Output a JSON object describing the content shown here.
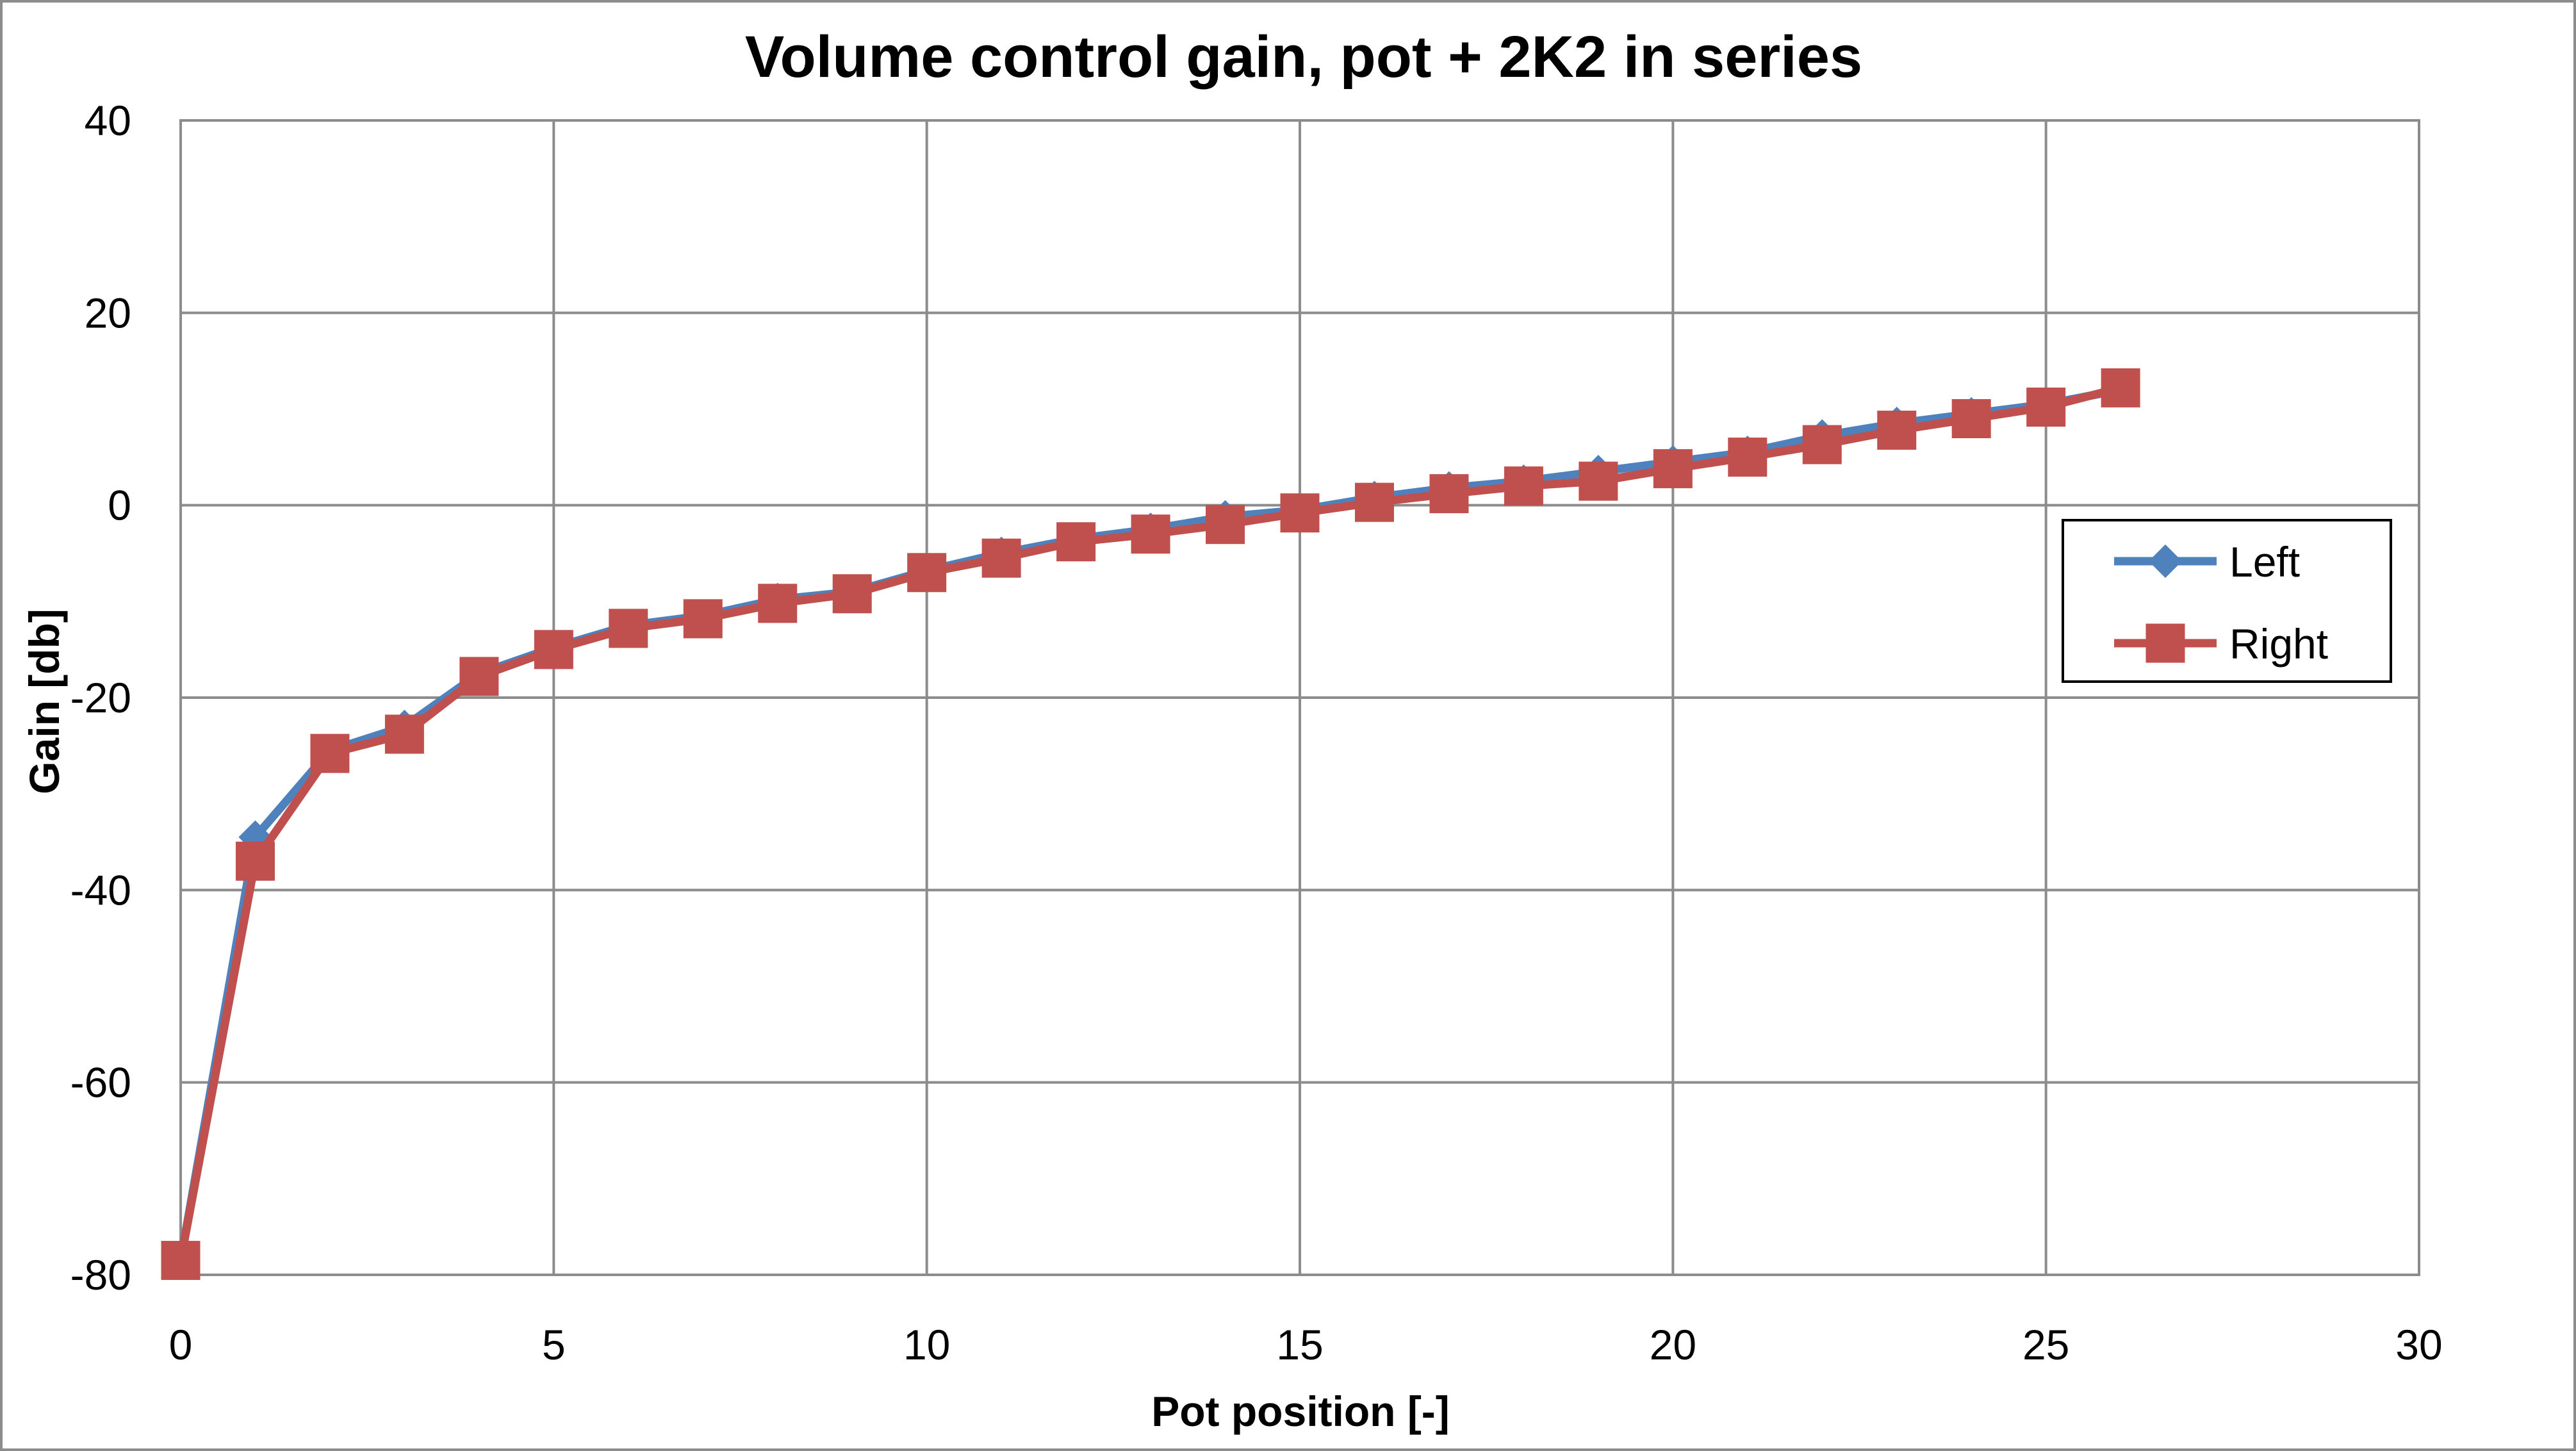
{
  "chart_data": {
    "type": "line",
    "title": "Volume control gain, pot + 2K2 in series",
    "xlabel": "Pot position [-]",
    "ylabel": "Gain [db]",
    "xlim": [
      0,
      30
    ],
    "ylim": [
      -80,
      40
    ],
    "xticks": [
      0,
      5,
      10,
      15,
      20,
      25,
      30
    ],
    "yticks": [
      -80,
      -60,
      -40,
      -20,
      0,
      20,
      40
    ],
    "grid": true,
    "legend_position": "right",
    "x": [
      0,
      1,
      2,
      3,
      4,
      5,
      6,
      7,
      8,
      9,
      10,
      11,
      12,
      13,
      14,
      15,
      16,
      17,
      18,
      19,
      20,
      21,
      22,
      23,
      24,
      25,
      26
    ],
    "series": [
      {
        "name": "Left",
        "color": "#4f81bd",
        "marker": "diamond",
        "values": [
          -78.5,
          -34.5,
          -25.5,
          -23,
          -17.5,
          -14.8,
          -12.5,
          -11.5,
          -9.8,
          -9,
          -6.8,
          -5,
          -3.5,
          -2.5,
          -1.2,
          -0.5,
          0.8,
          1.8,
          2.5,
          3.5,
          4.5,
          5.5,
          7.2,
          8.5,
          9.5,
          10.5,
          12
        ]
      },
      {
        "name": "Right",
        "color": "#c0504d",
        "marker": "square",
        "values": [
          -78.5,
          -37,
          -25.8,
          -23.8,
          -17.8,
          -15,
          -12.8,
          -11.8,
          -10.2,
          -9.2,
          -7,
          -5.5,
          -3.8,
          -3,
          -2,
          -0.8,
          0.3,
          1.2,
          2,
          2.5,
          3.8,
          5,
          6.3,
          7.8,
          9,
          10.2,
          12.2
        ]
      }
    ]
  }
}
